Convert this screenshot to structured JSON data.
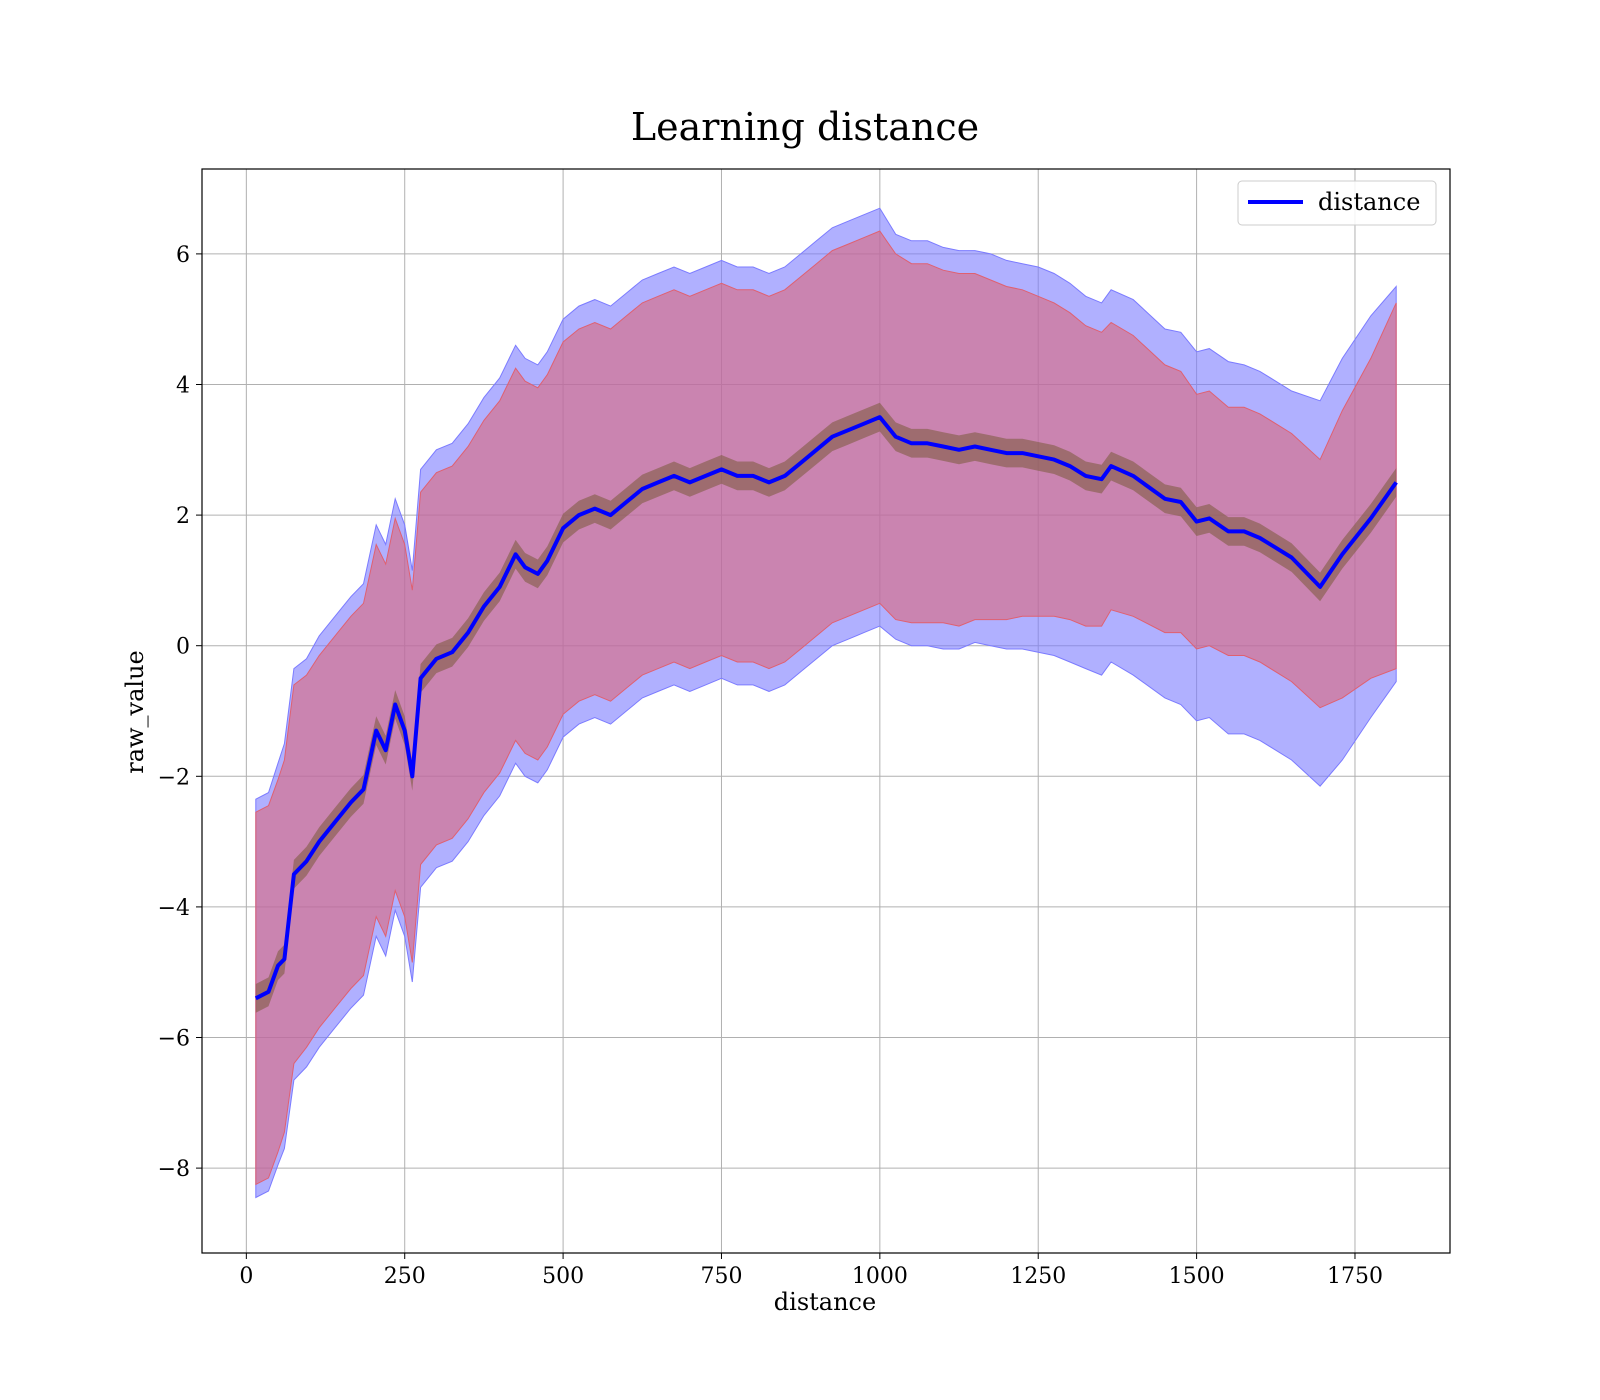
{
  "chart_data": {
    "type": "line",
    "title": "Learning distance",
    "xlabel": "distance",
    "ylabel": "raw_value",
    "xlim": [
      -70,
      1900
    ],
    "ylim": [
      -9.3,
      7.3
    ],
    "x_ticks": [
      0,
      250,
      500,
      750,
      1000,
      1250,
      1500,
      1750
    ],
    "y_ticks": [
      -8,
      -6,
      -4,
      -2,
      0,
      2,
      4,
      6
    ],
    "x_tick_labels": [
      "0",
      "250",
      "500",
      "750",
      "1000",
      "1250",
      "1500",
      "1750"
    ],
    "y_tick_labels": [
      "−8",
      "−6",
      "−4",
      "−2",
      "0",
      "2",
      "4",
      "6"
    ],
    "grid": true,
    "legend_position": "top-right",
    "series": [
      {
        "name": "distance",
        "color": "#0000ff",
        "x": [
          15,
          35,
          50,
          60,
          75,
          95,
          115,
          140,
          165,
          185,
          205,
          220,
          235,
          250,
          262,
          275,
          300,
          325,
          350,
          375,
          400,
          425,
          440,
          460,
          475,
          500,
          525,
          550,
          575,
          600,
          625,
          650,
          675,
          700,
          725,
          750,
          775,
          800,
          825,
          850,
          875,
          900,
          925,
          950,
          975,
          1000,
          1025,
          1050,
          1075,
          1100,
          1125,
          1150,
          1175,
          1200,
          1225,
          1250,
          1275,
          1300,
          1325,
          1350,
          1365,
          1400,
          1450,
          1475,
          1500,
          1520,
          1550,
          1575,
          1600,
          1650,
          1695,
          1730,
          1775,
          1815
        ],
        "values": [
          -5.4,
          -5.3,
          -4.9,
          -4.8,
          -3.5,
          -3.3,
          -3.0,
          -2.7,
          -2.4,
          -2.2,
          -1.3,
          -1.6,
          -0.9,
          -1.3,
          -2.0,
          -0.5,
          -0.2,
          -0.1,
          0.2,
          0.6,
          0.9,
          1.4,
          1.2,
          1.1,
          1.3,
          1.8,
          2.0,
          2.1,
          2.0,
          2.2,
          2.4,
          2.5,
          2.6,
          2.5,
          2.6,
          2.7,
          2.6,
          2.6,
          2.5,
          2.6,
          2.8,
          3.0,
          3.2,
          3.3,
          3.4,
          3.5,
          3.2,
          3.1,
          3.1,
          3.05,
          3.0,
          3.05,
          3.0,
          2.95,
          2.95,
          2.9,
          2.85,
          2.75,
          2.6,
          2.55,
          2.75,
          2.6,
          2.25,
          2.2,
          1.9,
          1.95,
          1.75,
          1.75,
          1.65,
          1.35,
          0.9,
          1.4,
          1.95,
          2.5
        ],
        "band_inner_upper": [
          -2.55,
          -2.45,
          -2.05,
          -1.75,
          -0.6,
          -0.45,
          -0.15,
          0.15,
          0.45,
          0.65,
          1.55,
          1.25,
          1.95,
          1.55,
          0.85,
          2.35,
          2.65,
          2.75,
          3.05,
          3.45,
          3.75,
          4.25,
          4.05,
          3.95,
          4.15,
          4.65,
          4.85,
          4.95,
          4.85,
          5.05,
          5.25,
          5.35,
          5.45,
          5.35,
          5.45,
          5.55,
          5.45,
          5.45,
          5.35,
          5.45,
          5.65,
          5.85,
          6.05,
          6.15,
          6.25,
          6.35,
          6.0,
          5.85,
          5.85,
          5.75,
          5.7,
          5.7,
          5.6,
          5.5,
          5.45,
          5.35,
          5.25,
          5.1,
          4.9,
          4.8,
          4.95,
          4.75,
          4.3,
          4.2,
          3.85,
          3.9,
          3.65,
          3.65,
          3.55,
          3.25,
          2.85,
          3.6,
          4.4,
          5.25
        ],
        "band_inner_lower": [
          -8.25,
          -8.15,
          -7.75,
          -7.45,
          -6.4,
          -6.15,
          -5.85,
          -5.55,
          -5.25,
          -5.05,
          -4.15,
          -4.45,
          -3.75,
          -4.15,
          -4.85,
          -3.35,
          -3.05,
          -2.95,
          -2.65,
          -2.25,
          -1.95,
          -1.45,
          -1.65,
          -1.75,
          -1.55,
          -1.05,
          -0.85,
          -0.75,
          -0.85,
          -0.65,
          -0.45,
          -0.35,
          -0.25,
          -0.35,
          -0.25,
          -0.15,
          -0.25,
          -0.25,
          -0.35,
          -0.25,
          -0.05,
          0.15,
          0.35,
          0.45,
          0.55,
          0.65,
          0.4,
          0.35,
          0.35,
          0.35,
          0.3,
          0.4,
          0.4,
          0.4,
          0.45,
          0.45,
          0.45,
          0.4,
          0.3,
          0.3,
          0.55,
          0.45,
          0.2,
          0.2,
          -0.05,
          0.0,
          -0.15,
          -0.15,
          -0.25,
          -0.55,
          -0.95,
          -0.8,
          -0.5,
          -0.35
        ],
        "band_outer_upper": [
          -2.35,
          -2.25,
          -1.8,
          -1.5,
          -0.35,
          -0.2,
          0.15,
          0.45,
          0.75,
          0.95,
          1.85,
          1.55,
          2.25,
          1.85,
          1.15,
          2.7,
          3.0,
          3.1,
          3.4,
          3.8,
          4.1,
          4.6,
          4.4,
          4.3,
          4.5,
          5.0,
          5.2,
          5.3,
          5.2,
          5.4,
          5.6,
          5.7,
          5.8,
          5.7,
          5.8,
          5.9,
          5.8,
          5.8,
          5.7,
          5.8,
          6.0,
          6.2,
          6.4,
          6.5,
          6.6,
          6.7,
          6.3,
          6.2,
          6.2,
          6.1,
          6.05,
          6.05,
          6.0,
          5.9,
          5.85,
          5.8,
          5.7,
          5.55,
          5.35,
          5.25,
          5.45,
          5.3,
          4.85,
          4.8,
          4.5,
          4.55,
          4.35,
          4.3,
          4.2,
          3.9,
          3.75,
          4.4,
          5.05,
          5.5
        ],
        "band_outer_lower": [
          -8.45,
          -8.35,
          -7.95,
          -7.7,
          -6.65,
          -6.45,
          -6.15,
          -5.85,
          -5.55,
          -5.35,
          -4.45,
          -4.75,
          -4.05,
          -4.45,
          -5.15,
          -3.7,
          -3.4,
          -3.3,
          -3.0,
          -2.6,
          -2.3,
          -1.8,
          -2.0,
          -2.1,
          -1.9,
          -1.4,
          -1.2,
          -1.1,
          -1.2,
          -1.0,
          -0.8,
          -0.7,
          -0.6,
          -0.7,
          -0.6,
          -0.5,
          -0.6,
          -0.6,
          -0.7,
          -0.6,
          -0.4,
          -0.2,
          0.0,
          0.1,
          0.2,
          0.3,
          0.1,
          0.0,
          0.0,
          -0.05,
          -0.05,
          0.05,
          0.0,
          -0.05,
          -0.05,
          -0.1,
          -0.15,
          -0.25,
          -0.35,
          -0.45,
          -0.25,
          -0.45,
          -0.8,
          -0.9,
          -1.15,
          -1.1,
          -1.35,
          -1.35,
          -1.45,
          -1.75,
          -2.15,
          -1.75,
          -1.1,
          -0.55
        ]
      }
    ],
    "colors": {
      "outer_band": "#7b7bff",
      "inner_band": "#e06070",
      "mean_band": "#7a5a3a",
      "grid": "#b0b0b0"
    }
  }
}
